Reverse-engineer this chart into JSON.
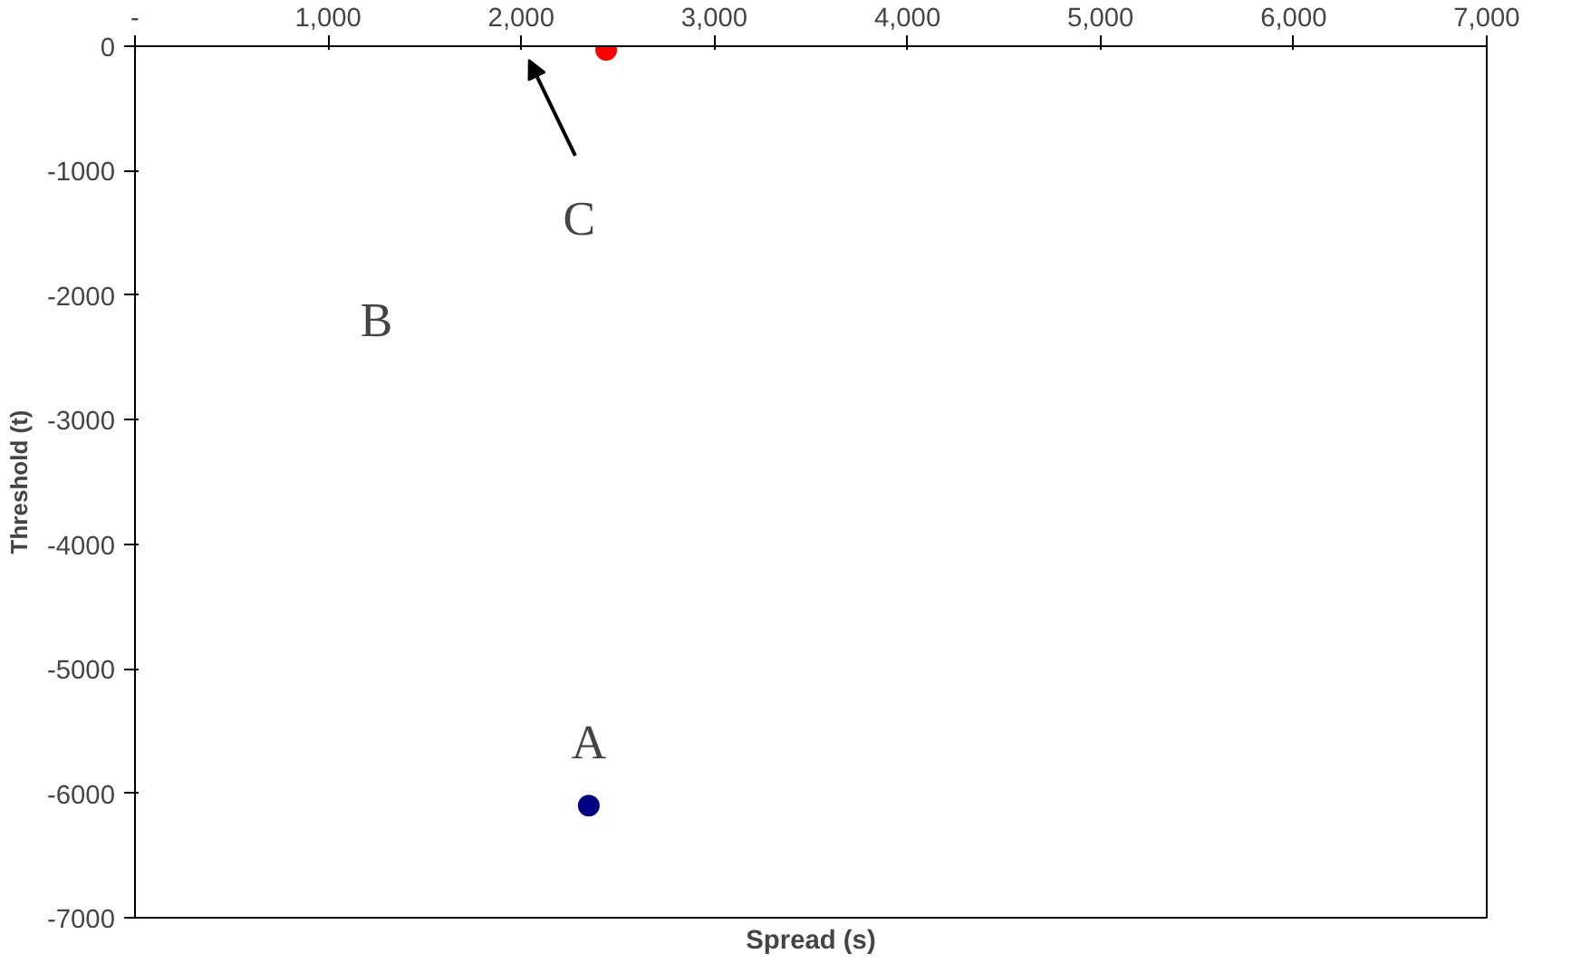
{
  "chart_data": {
    "type": "scatter",
    "xlabel": "Spread (s)",
    "ylabel": "Threshold (t)",
    "xlim": [
      0,
      7000
    ],
    "ylim": [
      -7000,
      0
    ],
    "xticks": [
      {
        "value": 0,
        "label": "-"
      },
      {
        "value": 1000,
        "label": "1,000"
      },
      {
        "value": 2000,
        "label": "2,000"
      },
      {
        "value": 3000,
        "label": "3,000"
      },
      {
        "value": 4000,
        "label": "4,000"
      },
      {
        "value": 5000,
        "label": "5,000"
      },
      {
        "value": 6000,
        "label": "6,000"
      },
      {
        "value": 7000,
        "label": "7,000"
      }
    ],
    "yticks": [
      0,
      -1000,
      -2000,
      -3000,
      -4000,
      -5000,
      -6000,
      -7000
    ],
    "grid": false,
    "marker": "circle",
    "series": [
      {
        "color": "#000080",
        "x": [
          2350
        ],
        "values": [
          -6100
        ]
      },
      {
        "color": "#ff0000",
        "x": [
          2440
        ],
        "values": [
          -30
        ]
      }
    ],
    "annotations": [
      {
        "text": "A",
        "x": 2350,
        "y": -6100
      },
      "B",
      "C"
    ]
  }
}
